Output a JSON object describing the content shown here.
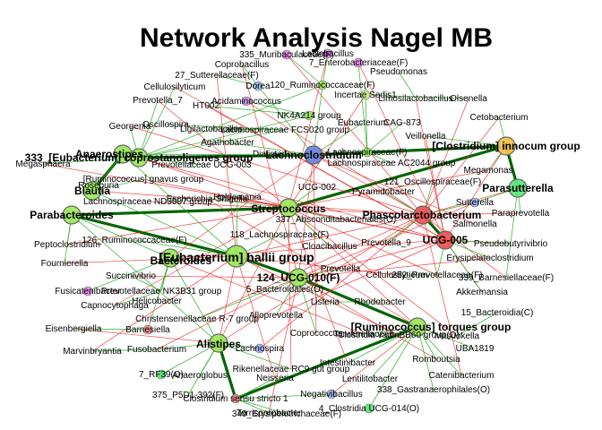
{
  "title": "Network Analysis Nagel MB",
  "colors": {
    "red_edge": "#ee2222",
    "green_edge": "#22aa22",
    "strong_edge": "#006400"
  },
  "nodes": [
    {
      "id": "eub_copro",
      "label": "333_[Eubacterium] coprostanoligenes group",
      "fill": "#9de85c",
      "size": "m"
    },
    {
      "id": "lachnoclost",
      "label": "Lachnoclostridium",
      "fill": "#6e86dd",
      "size": "m"
    },
    {
      "id": "clost_innoc",
      "label": "[Clostridium] innocum group",
      "fill": "#f2c24a",
      "size": "m"
    },
    {
      "id": "anaerostipes",
      "label": "Anaerostipes",
      "fill": "#9de85c",
      "size": "m"
    },
    {
      "id": "blautia",
      "label": "Blautia",
      "fill": "#9de85c",
      "size": "m"
    },
    {
      "id": "parabact",
      "label": "Parabacteroides",
      "fill": "#9de85c",
      "size": "m"
    },
    {
      "id": "parasut",
      "label": "Parasutterella",
      "fill": "#5ee87a",
      "size": "m"
    },
    {
      "id": "streptococcus",
      "label": "Streptococcus",
      "fill": "#9de85c",
      "size": "m"
    },
    {
      "id": "phasco",
      "label": "Phascolarctobacterium",
      "fill": "#ee5555",
      "size": "m"
    },
    {
      "id": "ucg005",
      "label": "UCG-005",
      "fill": "#ee5555",
      "size": "m"
    },
    {
      "id": "eub_hallii",
      "label": "[Eubacterium] hallii group",
      "fill": "#9de85c",
      "size": "l"
    },
    {
      "id": "bacteroides",
      "label": "Bacteroides",
      "fill": "#9de85c",
      "size": "m"
    },
    {
      "id": "ucg010",
      "label": "124_UCG-010(F)",
      "fill": "#9de85c",
      "size": "m"
    },
    {
      "id": "rum_torques",
      "label": "[Ruminococcus] torques group",
      "fill": "#9de85c",
      "size": "m"
    },
    {
      "id": "alistipes",
      "label": "Alistipes",
      "fill": "#9de85c",
      "size": "m"
    },
    {
      "id": "lachnospiraceae",
      "label": "Lachnospiraceae(F)",
      "fill": "#9de85c",
      "size": "s"
    },
    {
      "id": "lactobacillus",
      "label": "Lactobacillus",
      "fill": "#ee88ee",
      "size": "s"
    },
    {
      "id": "enterobact",
      "label": "7_Enterobacteriaceae(F)",
      "fill": "#ee88ee",
      "size": "s"
    },
    {
      "id": "pseudomonas",
      "label": "Pseudomonas",
      "fill": "#ffffff",
      "size": "s"
    },
    {
      "id": "muribac",
      "label": "335_Muribaculaceae(F)",
      "fill": "#ee88ee",
      "size": "s"
    },
    {
      "id": "copro",
      "label": "Coprobacillus",
      "fill": "#ffffff",
      "size": "s"
    },
    {
      "id": "sutterell",
      "label": "27_Sutterellaceae(F)",
      "fill": "#ffffff",
      "size": "s"
    },
    {
      "id": "cellulo",
      "label": "Cellulosilyticum",
      "fill": "#ffffff",
      "size": "s"
    },
    {
      "id": "dorea",
      "label": "Dorea",
      "fill": "#9db5ee",
      "size": "s"
    },
    {
      "id": "rumin_f",
      "label": "120_Ruminococcaceae(F)",
      "fill": "#9de85c",
      "size": "s"
    },
    {
      "id": "incertae",
      "label": "Incertae Sedis1",
      "fill": "#c8ee88",
      "size": "s"
    },
    {
      "id": "limosilacto",
      "label": "Limosilactobacillus",
      "fill": "#ffffff",
      "size": "s"
    },
    {
      "id": "olsenella",
      "label": "Olsenella",
      "fill": "#ffffff",
      "size": "s"
    },
    {
      "id": "prevotella7",
      "label": "Prevotella_7",
      "fill": "#ffffff",
      "size": "s"
    },
    {
      "id": "acidamino",
      "label": "Acidaminococcus",
      "fill": "#cc99ee",
      "size": "s"
    },
    {
      "id": "ht002",
      "label": "HT002",
      "fill": "#ffffff",
      "size": "s"
    },
    {
      "id": "nk4a214",
      "label": "NK4A214 group",
      "fill": "#9de85c",
      "size": "s"
    },
    {
      "id": "eubacterium",
      "label": "Eubacterium",
      "fill": "#ffffff",
      "size": "s"
    },
    {
      "id": "cag873",
      "label": "CAG-873",
      "fill": "#ffffff",
      "size": "s"
    },
    {
      "id": "cetobact",
      "label": "Cetobacterium",
      "fill": "#ffffff",
      "size": "s"
    },
    {
      "id": "georgenia",
      "label": "Georgenia",
      "fill": "#ffffff",
      "size": "s"
    },
    {
      "id": "oscillospira",
      "label": "Oscillospira",
      "fill": "#ffffff",
      "size": "s"
    },
    {
      "id": "ligilacto",
      "label": "Ligilactobacillus",
      "fill": "#ffffff",
      "size": "s"
    },
    {
      "id": "fcs020",
      "label": "Lachnospiraceae FCS020 group",
      "fill": "#ffffff",
      "size": "s"
    },
    {
      "id": "veillonella",
      "label": "Veillonella",
      "fill": "#ffffff",
      "size": "s"
    },
    {
      "id": "agathobacter",
      "label": "Agathobacter",
      "fill": "#ffffff",
      "size": "s"
    },
    {
      "id": "dialister",
      "label": "Dialister",
      "fill": "#ffffff",
      "size": "s"
    },
    {
      "id": "megasphaera",
      "label": "Megasphaera",
      "fill": "#ffffff",
      "size": "s"
    },
    {
      "id": "prevucg003",
      "label": "Prevotellaceae UCG-003",
      "fill": "#ffffff",
      "size": "s"
    },
    {
      "id": "ac2044",
      "label": "Lachnospiraceae AC2044 group",
      "fill": "#ffffff",
      "size": "s"
    },
    {
      "id": "megamonas",
      "label": "Megamonas",
      "fill": "#ffffff",
      "size": "s"
    },
    {
      "id": "rum_gnavus",
      "label": "[Ruminococcus] gnavus group",
      "fill": "#ffffff",
      "size": "s"
    },
    {
      "id": "osc121",
      "label": "121_Oscillospiraceae(F)",
      "fill": "#ffffff",
      "size": "s"
    },
    {
      "id": "ucg002",
      "label": "UCG-002",
      "fill": "#ffffff",
      "size": "s"
    },
    {
      "id": "pyramido",
      "label": "Pyramidobacter",
      "fill": "#ffffff",
      "size": "s"
    },
    {
      "id": "roseburia",
      "label": "Roseburia",
      "fill": "#ffffff",
      "size": "s"
    },
    {
      "id": "lachnd3007",
      "label": "Lachnospiraceae ND3007 group",
      "fill": "#ffffff",
      "size": "s"
    },
    {
      "id": "escherichia",
      "label": "Escherichia-Shigella",
      "fill": "#ffffff",
      "size": "s"
    },
    {
      "id": "holdemania",
      "label": "Holdemania",
      "fill": "#ffffff",
      "size": "s"
    },
    {
      "id": "sutterella",
      "label": "Sutterella",
      "fill": "#9db5ee",
      "size": "s"
    },
    {
      "id": "paraprev",
      "label": "Paraprevotella",
      "fill": "#ffffff",
      "size": "s"
    },
    {
      "id": "absconditab",
      "label": "337_Absconditabacteriales(O)",
      "fill": "#ffffff",
      "size": "s"
    },
    {
      "id": "salmonella",
      "label": "Salmonella",
      "fill": "#ffffff",
      "size": "s"
    },
    {
      "id": "peptoclost",
      "label": "Peptoclostridium",
      "fill": "#ffffff",
      "size": "s"
    },
    {
      "id": "rumin_f2",
      "label": "126_Ruminococcaceae(F)",
      "fill": "#ffffff",
      "size": "s"
    },
    {
      "id": "lachn_f2",
      "label": "118_Lachnospiraceae(F)",
      "fill": "#ffffff",
      "size": "s"
    },
    {
      "id": "pseudobutyr",
      "label": "Pseudobutyrivibrio",
      "fill": "#ffffff",
      "size": "s"
    },
    {
      "id": "cloacibac",
      "label": "Cloacibacillus",
      "fill": "#ffffff",
      "size": "s"
    },
    {
      "id": "prevotella9",
      "label": "Prevotella_9",
      "fill": "#ffffff",
      "size": "s"
    },
    {
      "id": "erysipelato",
      "label": "Erysipelatoclostridium",
      "fill": "#ffffff",
      "size": "s"
    },
    {
      "id": "fournierella",
      "label": "Fournierella",
      "fill": "#ffffff",
      "size": "s"
    },
    {
      "id": "succinivibrio",
      "label": "Succinivibrio",
      "fill": "#ffffff",
      "size": "s"
    },
    {
      "id": "prevotella",
      "label": "Prevotella",
      "fill": "#ffffff",
      "size": "s"
    },
    {
      "id": "cellsul",
      "label": "Cellulosilyticum",
      "fill": "#ffffff",
      "size": "s"
    },
    {
      "id": "prev252",
      "label": "252_Prevotellaceae(F)",
      "fill": "#ffffff",
      "size": "s"
    },
    {
      "id": "barnes339",
      "label": "339_Barnesiellaceae(F)",
      "fill": "#ffffff",
      "size": "s"
    },
    {
      "id": "fusicatenibacter",
      "label": "Fusicatenibacter",
      "fill": "#ee88ee",
      "size": "s"
    },
    {
      "id": "prevnk3b31",
      "label": "Prevotellaceae NK3B31 group",
      "fill": "#ffffff",
      "size": "s"
    },
    {
      "id": "bacteroidales",
      "label": "5_Bacteroidales(O)",
      "fill": "#ffffff",
      "size": "s"
    },
    {
      "id": "listeria",
      "label": "Listeria",
      "fill": "#ffffff",
      "size": "s"
    },
    {
      "id": "rhodobacter",
      "label": "Rhodobacter",
      "fill": "#ffffff",
      "size": "s"
    },
    {
      "id": "akkermansia",
      "label": "Akkermansia",
      "fill": "#ffffff",
      "size": "s"
    },
    {
      "id": "capnocyto",
      "label": "Capnocytophaga",
      "fill": "#ffffff",
      "size": "s"
    },
    {
      "id": "helicobacter",
      "label": "Helicobacter",
      "fill": "#ffffff",
      "size": "s"
    },
    {
      "id": "bacteroidia",
      "label": "15_Bacteroidia(C)",
      "fill": "#ffffff",
      "size": "s"
    },
    {
      "id": "christensen",
      "label": "Christensenellaceae R-7 group",
      "fill": "#ffffff",
      "size": "s"
    },
    {
      "id": "alloprev",
      "label": "Alloprevotella",
      "fill": "#ffffff",
      "size": "s"
    },
    {
      "id": "eisenberg",
      "label": "Eisenbergiella",
      "fill": "#ffffff",
      "size": "s"
    },
    {
      "id": "barnesiella",
      "label": "Barnesiella",
      "fill": "#ee8888",
      "size": "s"
    },
    {
      "id": "clostvadin",
      "label": "Clostridia vadinBB60 group(O)",
      "fill": "#ffffff",
      "size": "s"
    },
    {
      "id": "coprococcus",
      "label": "Coprococcus",
      "fill": "#ffffff",
      "size": "s"
    },
    {
      "id": "tannerella",
      "label": "Tannerellaceae",
      "fill": "#ffffff",
      "size": "s"
    },
    {
      "id": "mitsuokella",
      "label": "Mitsuokella",
      "fill": "#ffffff",
      "size": "s"
    },
    {
      "id": "uba1819",
      "label": "UBA1819",
      "fill": "#ffffff",
      "size": "s"
    },
    {
      "id": "marvinbry",
      "label": "Marvinbryantia",
      "fill": "#ffffff",
      "size": "s"
    },
    {
      "id": "fusobact",
      "label": "Fusobacterium",
      "fill": "#ffffff",
      "size": "s"
    },
    {
      "id": "lachnospira",
      "label": "Lachnospira",
      "fill": "#9db5ee",
      "size": "s"
    },
    {
      "id": "romboutsia",
      "label": "Romboutsia",
      "fill": "#ffffff",
      "size": "s"
    },
    {
      "id": "rf39",
      "label": "7_RF39(O)",
      "fill": "#5ee87a",
      "size": "s"
    },
    {
      "id": "anaeroglobus",
      "label": "Anaeroglobus",
      "fill": "#ffffff",
      "size": "s"
    },
    {
      "id": "rikenella",
      "label": "Rikenellaceae RC9 gut group",
      "fill": "#ffffff",
      "size": "s"
    },
    {
      "id": "intestinibacter",
      "label": "Intestinibacter",
      "fill": "#ffffff",
      "size": "s"
    },
    {
      "id": "catenibacterium",
      "label": "Catenibacterium",
      "fill": "#ffffff",
      "size": "s"
    },
    {
      "id": "neisseria",
      "label": "Neisseria",
      "fill": "#ffffff",
      "size": "s"
    },
    {
      "id": "lentilitobacter",
      "label": "Lentilitobacter",
      "fill": "#ffffff",
      "size": "s"
    },
    {
      "id": "p5d1",
      "label": "375_P5D1-392(F)",
      "fill": "#ffffff",
      "size": "s"
    },
    {
      "id": "gastranaero",
      "label": "338_Gastranaerophilales(O)",
      "fill": "#ffffff",
      "size": "s"
    },
    {
      "id": "clostss1",
      "label": "Clostridium sensu stricto 1",
      "fill": "#ee8888",
      "size": "s"
    },
    {
      "id": "negativibac",
      "label": "Negativibacillus",
      "fill": "#9db5ee",
      "size": "s"
    },
    {
      "id": "terrisporo",
      "label": "Terrisporobacter",
      "fill": "#ffffff",
      "size": "s"
    },
    {
      "id": "erysipel",
      "label": "349_Erysipelotrichaceae(F)",
      "fill": "#ffffff",
      "size": "s"
    },
    {
      "id": "clostucg014",
      "label": "4_Clostridia UCG-014(O)",
      "fill": "#5ee87a",
      "size": "s"
    }
  ]
}
